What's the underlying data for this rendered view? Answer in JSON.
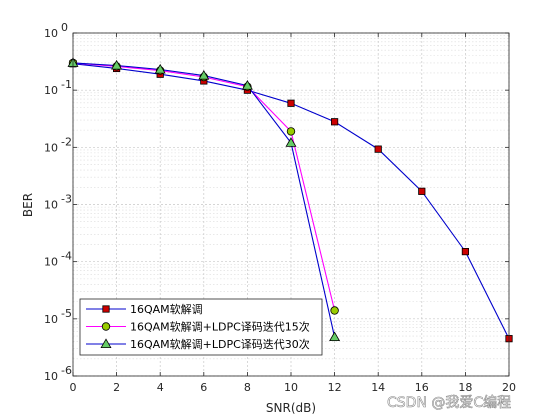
{
  "chart_data": {
    "type": "line",
    "yscale": "log",
    "xlabel": "SNR(dB)",
    "ylabel": "BER",
    "xlim": [
      0,
      20
    ],
    "ylim": [
      1e-06,
      1
    ],
    "xticks": [
      0,
      2,
      4,
      6,
      8,
      10,
      12,
      14,
      16,
      18,
      20
    ],
    "yticks": [
      {
        "value": 1e-06,
        "base": "10",
        "exp": "-6"
      },
      {
        "value": 1e-05,
        "base": "10",
        "exp": "-5"
      },
      {
        "value": 0.0001,
        "base": "10",
        "exp": "-4"
      },
      {
        "value": 0.001,
        "base": "10",
        "exp": "-3"
      },
      {
        "value": 0.01,
        "base": "10",
        "exp": "-2"
      },
      {
        "value": 0.1,
        "base": "10",
        "exp": "-1"
      },
      {
        "value": 1,
        "base": "10",
        "exp": "0"
      }
    ],
    "grid": true,
    "minor_grid": true,
    "legend_position": "bottom-left",
    "series": [
      {
        "name": "16QAM软解调",
        "color": "#0000cc",
        "marker": "square",
        "marker_color": "#cc0000",
        "x": [
          0,
          2,
          4,
          6,
          8,
          10,
          12,
          14,
          16,
          18,
          20
        ],
        "y": [
          0.29,
          0.24,
          0.19,
          0.145,
          0.1,
          0.059,
          0.028,
          0.0093,
          0.0017,
          0.00015,
          4.5e-06
        ]
      },
      {
        "name": "16QAM软解调+LDPC译码迭代15次",
        "color": "#ff00ff",
        "marker": "circle",
        "marker_color": "#99cc00",
        "x": [
          0,
          2,
          4,
          6,
          8,
          10,
          12
        ],
        "y": [
          0.3,
          0.26,
          0.22,
          0.17,
          0.115,
          0.019,
          1.4e-05
        ]
      },
      {
        "name": "16QAM软解调+LDPC译码迭代30次",
        "color": "#0000cc",
        "marker": "triangle",
        "marker_color": "#66cc66",
        "x": [
          0,
          2,
          4,
          6,
          8,
          10,
          12
        ],
        "y": [
          0.3,
          0.27,
          0.23,
          0.18,
          0.12,
          0.012,
          4.8e-06
        ]
      }
    ]
  },
  "watermark": "CSDN @我爱C编程"
}
